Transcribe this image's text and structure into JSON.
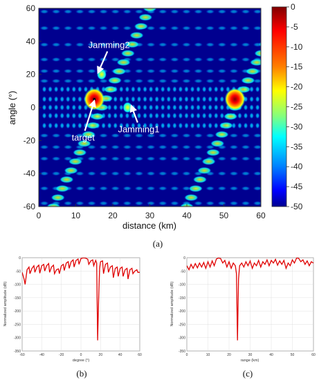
{
  "chart_data": [
    {
      "type": "heatmap",
      "panel": "(a)",
      "xlabel": "distance (km)",
      "ylabel": "angle (°)",
      "xlim": [
        0,
        60
      ],
      "ylim": [
        -60,
        60
      ],
      "xticks": [
        0,
        10,
        20,
        30,
        40,
        50,
        60
      ],
      "yticks": [
        60,
        40,
        20,
        0,
        -20,
        -40,
        -60
      ],
      "colorbar": {
        "min": -50,
        "max": 0,
        "ticks": [
          0,
          -5,
          -10,
          -15,
          -20,
          -25,
          -30,
          -35,
          -40,
          -45,
          -50
        ]
      },
      "colormap": [
        "#00008f",
        "#0000ff",
        "#0080ff",
        "#00ffff",
        "#80ff80",
        "#ffff00",
        "#ff8000",
        "#ff0000",
        "#800000"
      ],
      "peaks": [
        {
          "label": "target",
          "distance": 15,
          "angle": 5,
          "level": 0
        },
        {
          "label": "Jamming1",
          "distance": 24,
          "angle": 0,
          "level": -20
        },
        {
          "label": "Jamming2",
          "distance": 17,
          "angle": 20,
          "level": -18
        },
        {
          "label": "",
          "distance": 53,
          "angle": 5,
          "level": -1
        }
      ],
      "annotations": [
        {
          "text": "Jamming2",
          "distance": 19,
          "angle": 36,
          "arrow_to": [
            16,
            21
          ]
        },
        {
          "text": "Jamming1",
          "distance": 27,
          "angle": -15,
          "arrow_to": [
            25,
            1
          ]
        },
        {
          "text": "target",
          "distance": 12,
          "angle": -20,
          "arrow_to": [
            15,
            4
          ]
        }
      ]
    },
    {
      "type": "line",
      "panel": "(b)",
      "xlabel": "degree (°)",
      "ylabel": "Normalized amplitude (dB)",
      "xlim": [
        -60,
        60
      ],
      "ylim": [
        -350,
        0
      ],
      "xticks": [
        -60,
        -40,
        -20,
        0,
        20,
        40,
        60
      ],
      "yticks": [
        0,
        -50,
        -100,
        -150,
        -200,
        -250,
        -300,
        -350
      ],
      "series": [
        {
          "x": [
            -60,
            -58,
            -57,
            -55,
            -53,
            -52,
            -50,
            -48,
            -47,
            -45,
            -43,
            -42,
            -40,
            -38,
            -37,
            -35,
            -33,
            -32,
            -30,
            -28,
            -27,
            -25,
            -23,
            -22,
            -20,
            -18,
            -17,
            -15,
            -13,
            -12,
            -10,
            -8,
            -7,
            -5,
            -3,
            -2,
            0,
            2,
            3,
            5,
            7,
            8,
            10,
            12,
            13,
            15,
            16,
            17,
            18,
            19,
            20,
            22,
            23,
            25,
            27,
            28,
            30,
            32,
            33,
            35,
            37,
            38,
            40,
            42,
            43,
            45,
            47,
            48,
            50,
            52,
            53,
            55,
            57,
            58,
            60
          ],
          "y": [
            -55,
            -80,
            -100,
            -45,
            -35,
            -60,
            -40,
            -30,
            -55,
            -35,
            -28,
            -58,
            -30,
            -25,
            -50,
            -30,
            -22,
            -55,
            -35,
            -28,
            -60,
            -45,
            -42,
            -60,
            -30,
            -25,
            -48,
            -20,
            -15,
            -40,
            -15,
            -8,
            -35,
            -10,
            -5,
            -25,
            -3,
            -1,
            -0.5,
            -2,
            -6,
            -25,
            -12,
            -8,
            -30,
            -10,
            -20,
            -310,
            -160,
            -40,
            -15,
            -12,
            -60,
            -25,
            -20,
            -55,
            -35,
            -30,
            -75,
            -40,
            -35,
            -70,
            -40,
            -35,
            -70,
            -45,
            -40,
            -80,
            -45,
            -40,
            -60,
            -50,
            -45,
            -55,
            -55
          ]
        }
      ]
    },
    {
      "type": "line",
      "panel": "(c)",
      "xlabel": "range (km)",
      "ylabel": "Normalized amplitude (dB)",
      "xlim": [
        0,
        60
      ],
      "ylim": [
        -350,
        0
      ],
      "xticks": [
        0,
        10,
        20,
        30,
        40,
        50,
        60
      ],
      "yticks": [
        0,
        -50,
        -100,
        -150,
        -200,
        -250,
        -300,
        -350
      ],
      "series": [
        {
          "x": [
            0,
            1,
            2,
            3,
            4,
            5,
            6,
            7,
            8,
            9,
            10,
            11,
            12,
            13,
            14,
            15,
            16,
            17,
            18,
            19,
            20,
            21,
            22,
            23,
            23.5,
            24,
            24.5,
            25,
            26,
            27,
            28,
            29,
            30,
            31,
            32,
            33,
            34,
            35,
            36,
            37,
            38,
            39,
            40,
            41,
            42,
            43,
            44,
            45,
            46,
            47,
            48,
            49,
            50,
            51,
            52,
            53,
            54,
            55,
            56,
            57,
            58,
            59,
            60
          ],
          "y": [
            -30,
            -45,
            -25,
            -40,
            -22,
            -38,
            -20,
            -35,
            -18,
            -40,
            -15,
            -35,
            -12,
            -30,
            -5,
            -1,
            -3,
            -20,
            -10,
            -35,
            -15,
            -40,
            -20,
            -30,
            -60,
            -310,
            -80,
            -30,
            -20,
            -35,
            -15,
            -30,
            -12,
            -40,
            -20,
            -30,
            -10,
            -35,
            -15,
            -25,
            -8,
            -30,
            -10,
            -20,
            -6,
            -28,
            -12,
            -25,
            -10,
            -40,
            -20,
            -30,
            -8,
            -20,
            -1,
            -2,
            -15,
            -8,
            -25,
            -12,
            -30,
            -15,
            -20
          ]
        }
      ]
    }
  ],
  "captions": {
    "a": "(a)",
    "b": "(b)",
    "c": "(c)"
  }
}
